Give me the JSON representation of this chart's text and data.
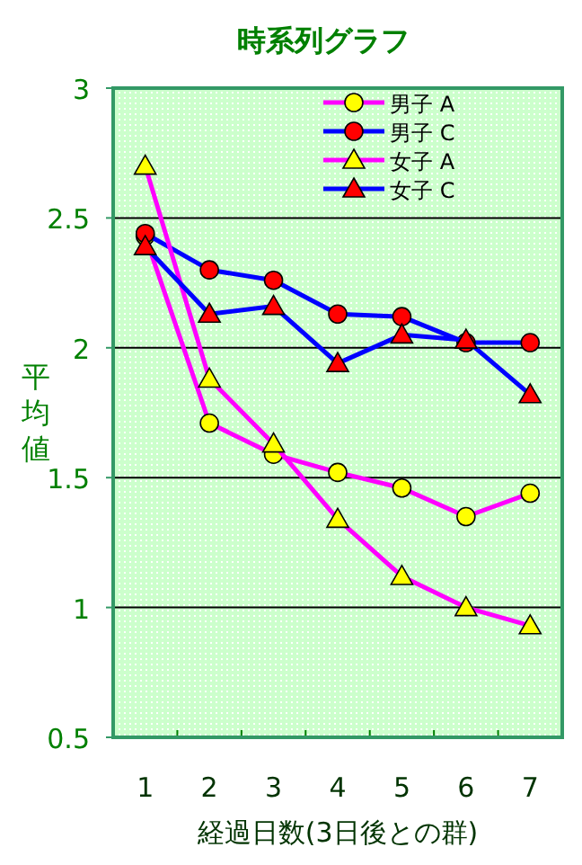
{
  "chart_data": {
    "type": "line",
    "title": "時系列グラフ",
    "xlabel": "経過日数(3日後との群)",
    "ylabel": "平均値",
    "categories": [
      "1",
      "2",
      "3",
      "4",
      "5",
      "6",
      "7"
    ],
    "ylim": [
      0.5,
      3
    ],
    "yticks": [
      0.5,
      1,
      1.5,
      2,
      2.5,
      3
    ],
    "grid": "y",
    "legend": "top right",
    "line_style": "solid",
    "series": [
      {
        "name": "男子 A",
        "color": "#ff00ff",
        "marker": "circle",
        "colors": [
          "#ffff00",
          "#ffff00",
          "#ffff00",
          "#ffff00",
          "#ffff00",
          "#ffff00",
          "#ffff00"
        ],
        "values": [
          2.43,
          1.71,
          1.59,
          1.52,
          1.46,
          1.35,
          1.44
        ]
      },
      {
        "name": "男子 C",
        "color": "#0000ff",
        "marker": "circle",
        "colors": [
          "#ff0000",
          "#ff0000",
          "#ff0000",
          "#ff0000",
          "#ff0000",
          "#ff0000",
          "#ff0000"
        ],
        "values": [
          2.44,
          2.3,
          2.26,
          2.13,
          2.12,
          2.02,
          2.02
        ]
      },
      {
        "name": "女子 A",
        "color": "#ff00ff",
        "marker": "triangle",
        "colors": [
          "#ffff00",
          "#ffff00",
          "#ffff00",
          "#ffff00",
          "#ffff00",
          "#ffff00",
          "#ffff00"
        ],
        "values": [
          2.7,
          1.88,
          1.63,
          1.34,
          1.12,
          1.0,
          0.93
        ]
      },
      {
        "name": "女子 C",
        "color": "#0000ff",
        "marker": "triangle",
        "colors": [
          "#ff0000",
          "#ff0000",
          "#ff0000",
          "#ff0000",
          "#ff0000",
          "#ff0000",
          "#ff0000"
        ],
        "values": [
          2.39,
          2.13,
          2.16,
          1.94,
          2.05,
          2.03,
          1.82
        ]
      }
    ]
  }
}
